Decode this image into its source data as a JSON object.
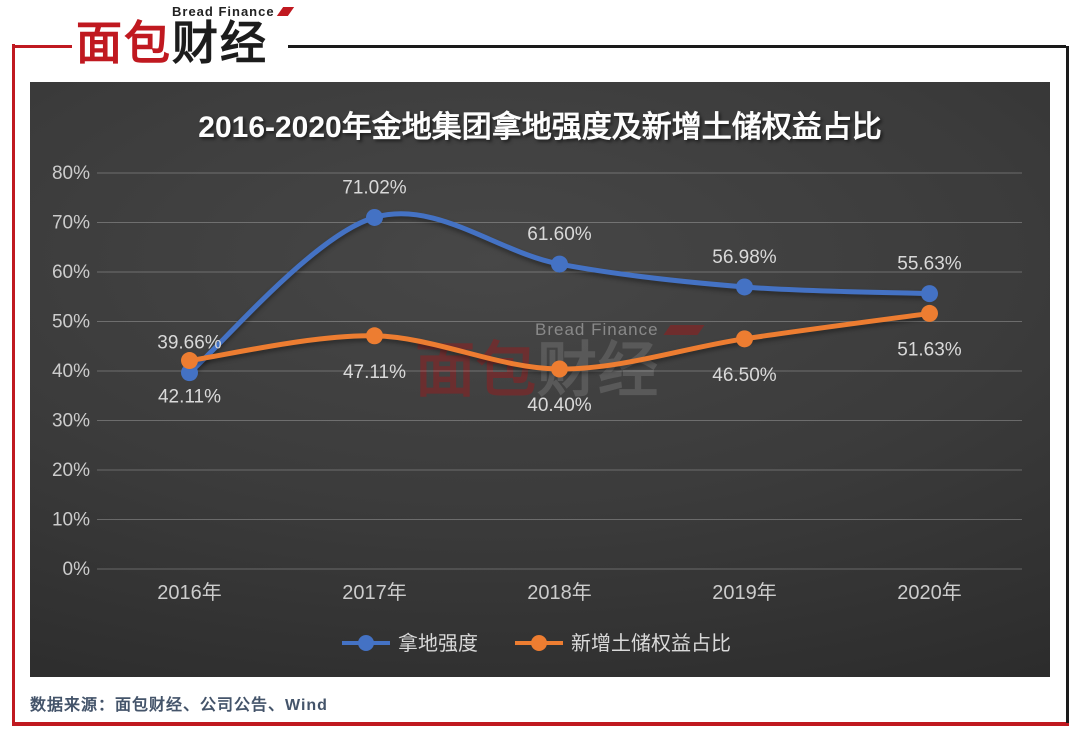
{
  "logo": {
    "brand_en": "Bread Finance",
    "brand_cn_red": "面包",
    "brand_cn_black": "财经"
  },
  "watermark": {
    "en": "Bread Finance",
    "cn_red": "面包",
    "cn_gray": "财经"
  },
  "source_note": "数据来源：面包财经、公司公告、Wind",
  "colors": {
    "frame_red": "#C01920",
    "series_blue": "#4472C4",
    "series_orange": "#ED7D31",
    "grid_line": "rgba(255,255,255,0.25)",
    "tick_text": "#cccccc",
    "data_label_text": "#d9d9d9",
    "title_text": "#fdfdfd"
  },
  "chart_data": {
    "type": "line",
    "title": "2016-2020年金地集团拿地强度及新增土储权益占比",
    "categories": [
      "2016年",
      "2017年",
      "2018年",
      "2019年",
      "2020年"
    ],
    "series": [
      {
        "name": "拿地强度",
        "color": "#4472C4",
        "values": [
          39.66,
          71.02,
          61.6,
          56.98,
          55.63
        ],
        "label_position": "above"
      },
      {
        "name": "新增土储权益占比",
        "color": "#ED7D31",
        "values": [
          42.11,
          47.11,
          40.4,
          46.5,
          51.63
        ],
        "label_position": "below"
      }
    ],
    "ylim": [
      0,
      80
    ],
    "ytick_step": 10,
    "ytick_suffix": "%",
    "value_suffix": "%",
    "value_decimals": 2,
    "grid": "horizontal",
    "line_style": "smooth",
    "legend_position": "bottom"
  }
}
